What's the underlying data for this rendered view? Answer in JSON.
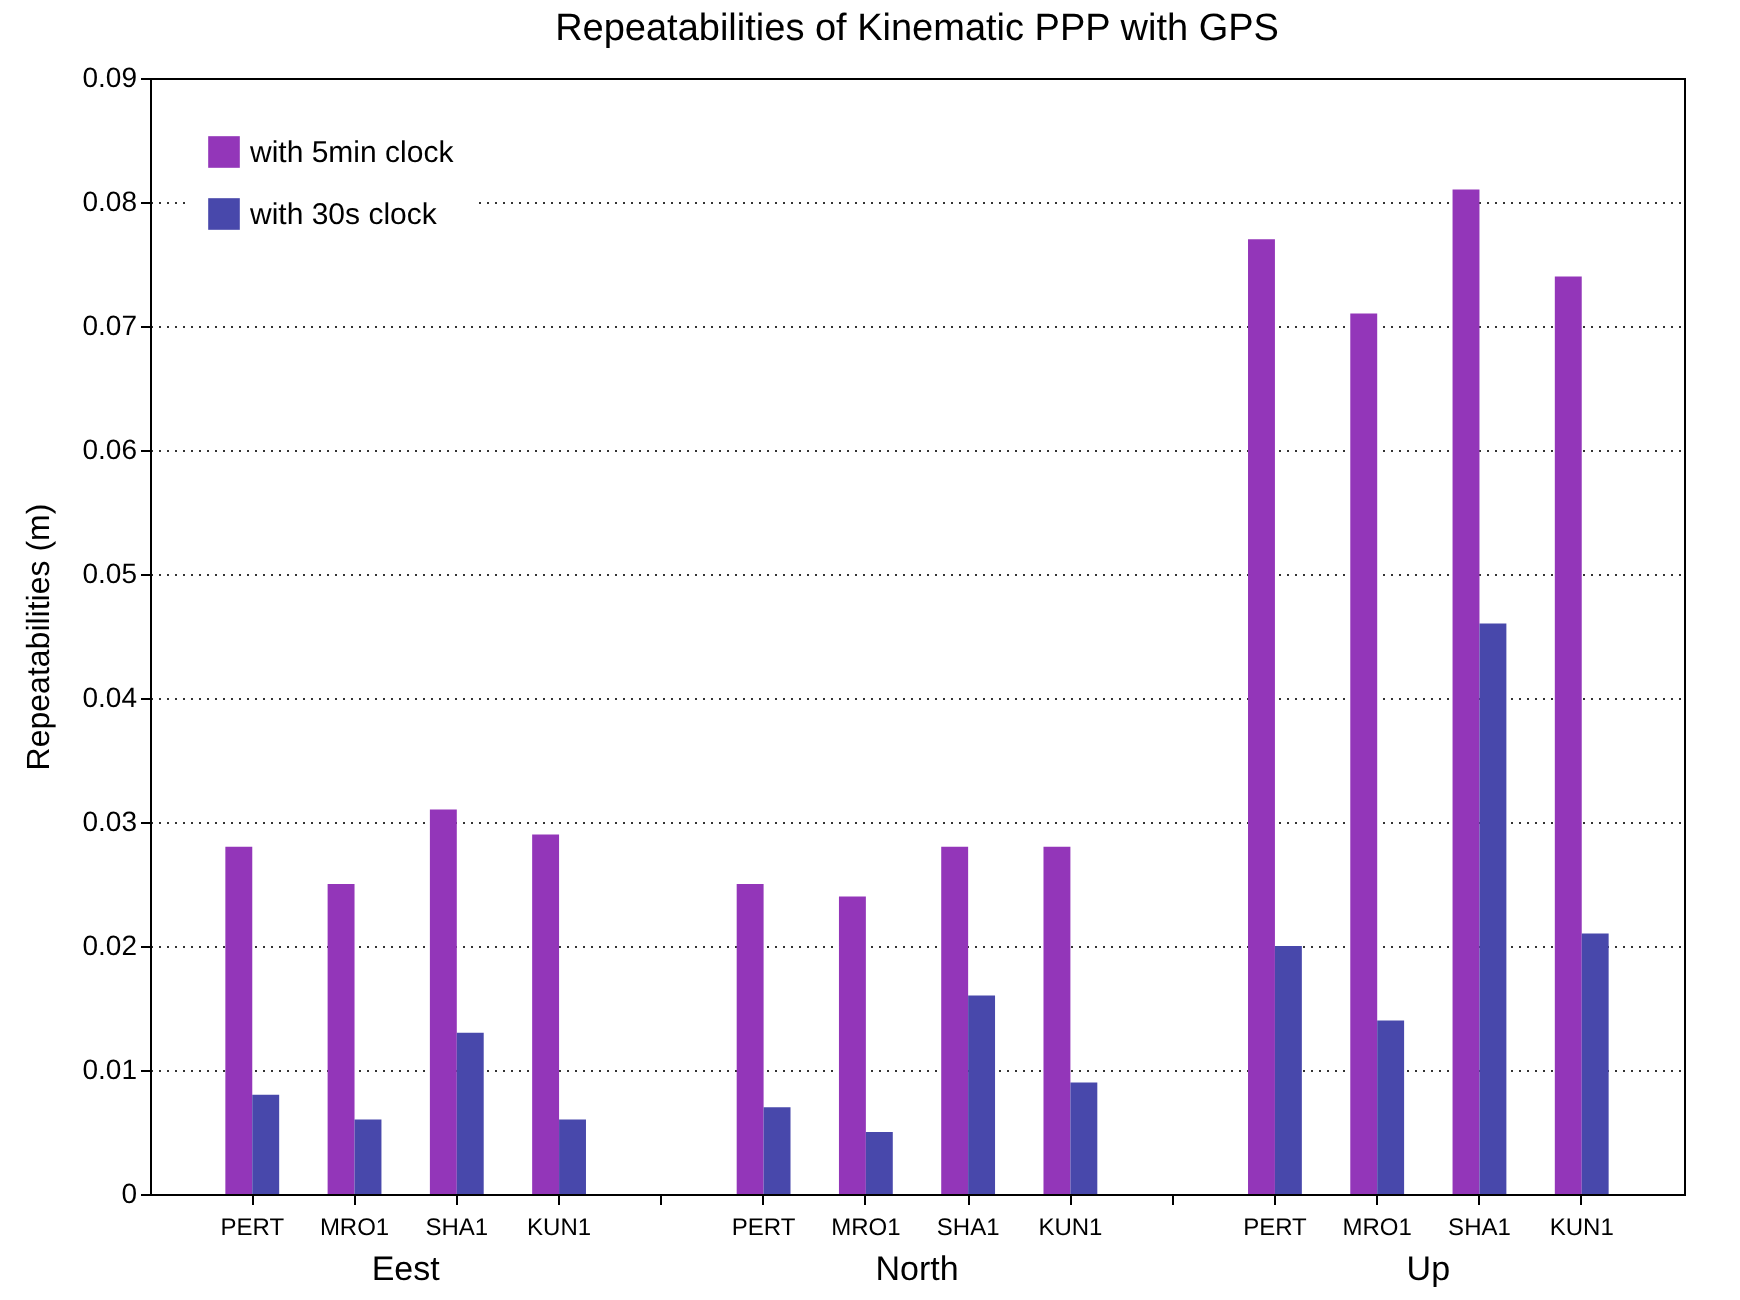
{
  "chart_data": {
    "type": "bar",
    "title": "Repeatabilities of Kinematic PPP with GPS",
    "ylabel": "Repeatabilities (m)",
    "categories": [
      "PERT",
      "MRO1",
      "SHA1",
      "KUN1",
      null,
      "PERT",
      "MRO1",
      "SHA1",
      "KUN1",
      null,
      "PERT",
      "MRO1",
      "SHA1",
      "KUN1"
    ],
    "series": [
      {
        "name": "with 5min clock",
        "color": "#9336b9",
        "values": [
          0.028,
          0.025,
          0.031,
          0.029,
          null,
          0.025,
          0.024,
          0.028,
          0.028,
          null,
          0.077,
          0.071,
          0.081,
          0.074
        ]
      },
      {
        "name": "with 30s clock",
        "color": "#4848ab",
        "values": [
          0.008,
          0.006,
          0.013,
          0.006,
          null,
          0.007,
          0.005,
          0.016,
          0.009,
          null,
          0.02,
          0.014,
          0.046,
          0.021
        ]
      }
    ],
    "annotations": [
      "Eest",
      "North",
      "Up"
    ],
    "ylim": [
      0,
      0.09
    ],
    "yticks": [
      0,
      0.01,
      0.02,
      0.03,
      0.04,
      0.05,
      0.06,
      0.07,
      0.08,
      0.09
    ],
    "grid": "y",
    "legend": "top left"
  }
}
